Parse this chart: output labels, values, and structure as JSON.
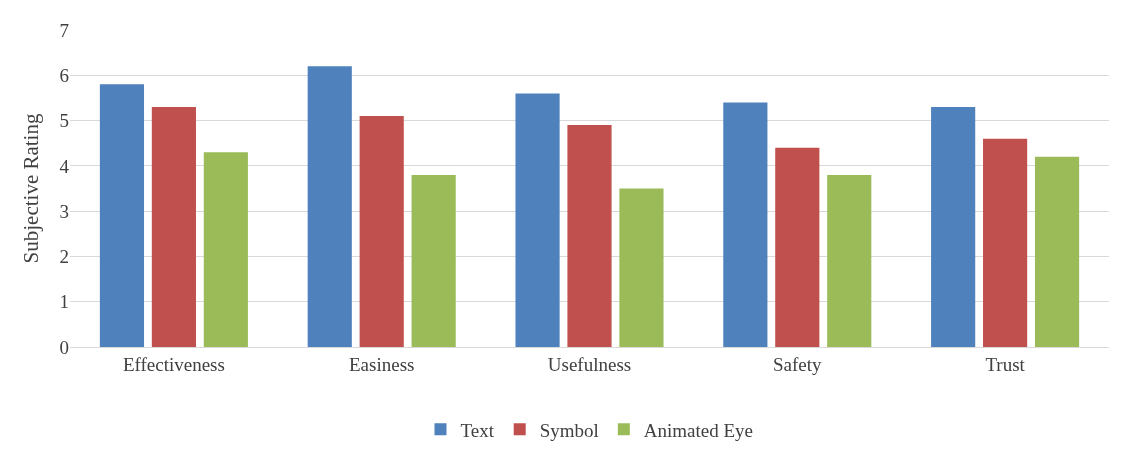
{
  "chart_data": {
    "type": "bar",
    "ylabel": "Subjective Rating",
    "categories": [
      "Effectiveness",
      "Easiness",
      "Usefulness",
      "Safety",
      "Trust"
    ],
    "series": [
      {
        "name": "Text",
        "color": "#4f81bd",
        "values": [
          5.8,
          6.2,
          5.6,
          5.4,
          5.3
        ]
      },
      {
        "name": "Symbol",
        "color": "#c0504d",
        "values": [
          5.3,
          5.1,
          4.9,
          4.4,
          4.6
        ]
      },
      {
        "name": "Animated Eye",
        "color": "#9bbb59",
        "values": [
          4.3,
          3.8,
          3.5,
          3.8,
          4.2
        ]
      }
    ],
    "ylim": [
      0,
      7
    ],
    "yticks": [
      0,
      1,
      2,
      3,
      4,
      5,
      6,
      7
    ],
    "grid": "y",
    "legend": "bottom"
  }
}
